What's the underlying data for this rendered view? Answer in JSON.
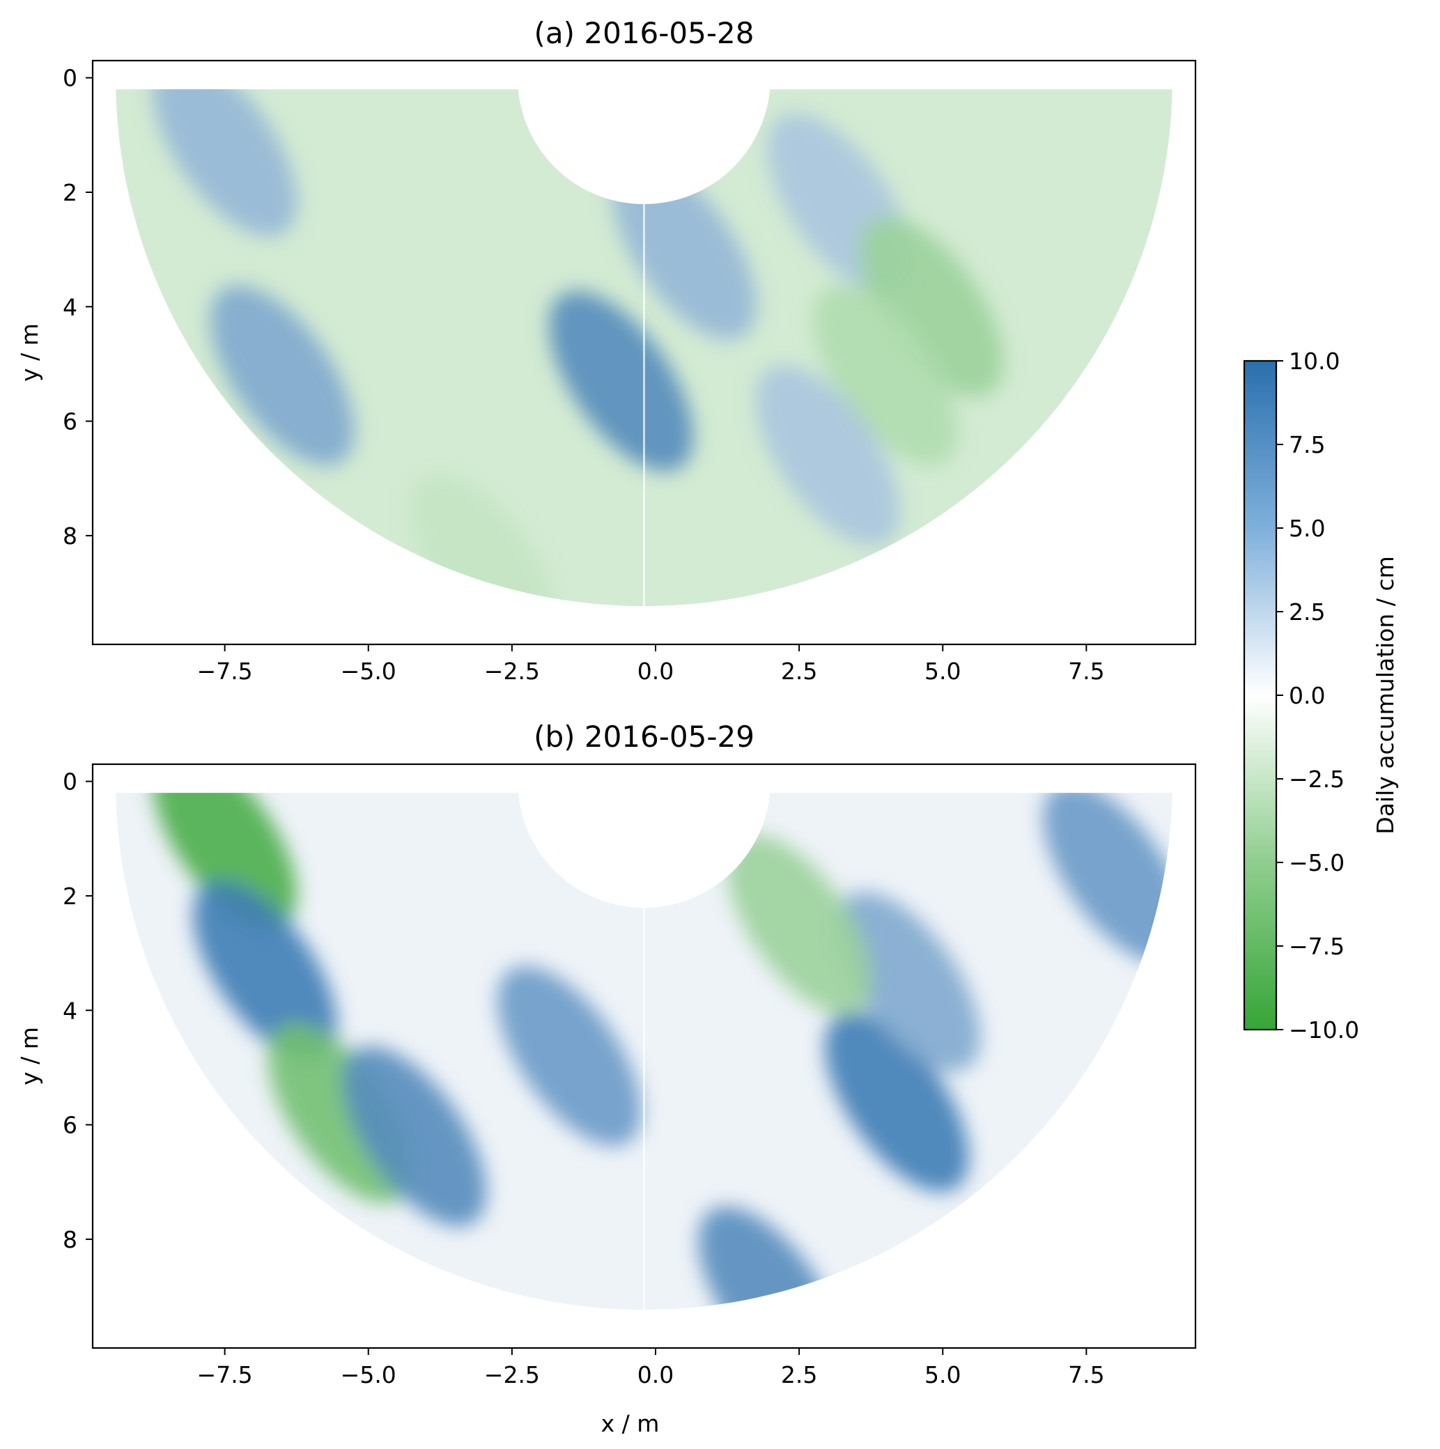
{
  "chart_data": [
    {
      "type": "heatmap",
      "title": "(a) 2016-05-28",
      "xlabel": "",
      "ylabel": "y / m",
      "xlim": [
        -9.8,
        9.4
      ],
      "ylim": [
        9.9,
        -0.3
      ],
      "y_inverted": true,
      "xticks": [
        -7.5,
        -5.0,
        -2.5,
        0.0,
        2.5,
        5.0,
        7.5
      ],
      "xtick_labels": [
        "−7.5",
        "−5.0",
        "−2.5",
        "0.0",
        "2.5",
        "5.0",
        "7.5"
      ],
      "yticks": [
        0,
        2,
        4,
        6,
        8
      ],
      "ytick_labels": [
        "0",
        "2",
        "4",
        "6",
        "8"
      ],
      "field_shape": "half-annulus sector",
      "sector": {
        "inner_radius_m": 2.2,
        "outer_radius_m": 9.2,
        "center_x": -0.2
      },
      "dominant_sign": "negative",
      "value_range_estimate": [
        -6,
        8
      ],
      "features": [
        {
          "x": -6.5,
          "y": 5.2,
          "value": 6
        },
        {
          "x": -7.5,
          "y": 1.2,
          "value": 5
        },
        {
          "x": -0.6,
          "y": 5.3,
          "value": 8
        },
        {
          "x": 0.5,
          "y": 3.0,
          "value": 5
        },
        {
          "x": 3.2,
          "y": 2.2,
          "value": 4
        },
        {
          "x": 4.8,
          "y": 4.0,
          "value": -5
        },
        {
          "x": 4.0,
          "y": 5.2,
          "value": -4
        },
        {
          "x": -3.0,
          "y": 8.5,
          "value": -3
        },
        {
          "x": 3.0,
          "y": 6.6,
          "value": 4
        }
      ]
    },
    {
      "type": "heatmap",
      "title": "(b) 2016-05-29",
      "xlabel": "x / m",
      "ylabel": "y / m",
      "xlim": [
        -9.8,
        9.4
      ],
      "ylim": [
        9.9,
        -0.3
      ],
      "y_inverted": true,
      "xticks": [
        -7.5,
        -5.0,
        -2.5,
        0.0,
        2.5,
        5.0,
        7.5
      ],
      "xtick_labels": [
        "−7.5",
        "−5.0",
        "−2.5",
        "0.0",
        "2.5",
        "5.0",
        "7.5"
      ],
      "yticks": [
        0,
        2,
        4,
        6,
        8
      ],
      "ytick_labels": [
        "0",
        "2",
        "4",
        "6",
        "8"
      ],
      "field_shape": "half-annulus sector",
      "sector": {
        "inner_radius_m": 2.2,
        "outer_radius_m": 9.2,
        "center_x": -0.2
      },
      "dominant_sign": "mixed",
      "value_range_estimate": [
        -9,
        9
      ],
      "features": [
        {
          "x": -7.5,
          "y": 1.0,
          "value": -9
        },
        {
          "x": -6.8,
          "y": 3.3,
          "value": 9
        },
        {
          "x": -5.5,
          "y": 5.8,
          "value": -7
        },
        {
          "x": -4.2,
          "y": 6.2,
          "value": 8
        },
        {
          "x": -1.5,
          "y": 4.8,
          "value": 7
        },
        {
          "x": 4.2,
          "y": 5.6,
          "value": 9
        },
        {
          "x": 4.4,
          "y": 3.5,
          "value": 6
        },
        {
          "x": 8.0,
          "y": 1.6,
          "value": 7
        },
        {
          "x": 2.0,
          "y": 9.0,
          "value": 8
        },
        {
          "x": 2.5,
          "y": 2.5,
          "value": -5
        }
      ]
    }
  ],
  "colorbar": {
    "label": "Daily accumulation / cm",
    "range": [
      -10.0,
      10.0
    ],
    "ticks": [
      10.0,
      7.5,
      5.0,
      2.5,
      0.0,
      -2.5,
      -5.0,
      -7.5,
      -10.0
    ],
    "tick_labels": [
      "10.0",
      "7.5",
      "5.0",
      "2.5",
      "0.0",
      "−2.5",
      "−5.0",
      "−7.5",
      "−10.0"
    ],
    "color_max": "#2a6fad",
    "color_mid": "#ffffff",
    "color_min": "#36a536"
  }
}
